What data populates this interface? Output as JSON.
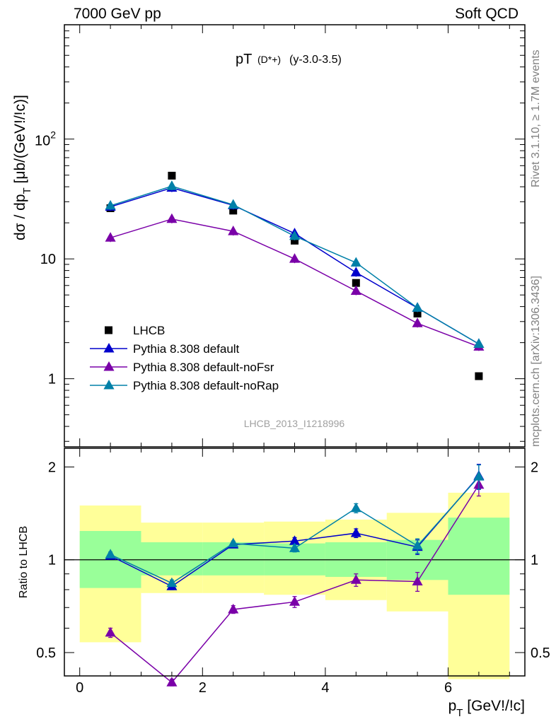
{
  "header": {
    "left": "7000 GeV pp",
    "right": "Soft QCD",
    "side_top": "Rivet 3.1.10, ≥ 1.7M events",
    "side_bottom": "mcplots.cern.ch [arXiv:1306.3436]"
  },
  "chart_data": [
    {
      "type": "scatter",
      "title_main": "pT",
      "title_particle": "(D*+)",
      "title_range": "(y-3.0-3.5)",
      "watermark": "LHCB_2013_I1218996",
      "ylabel": "dσ / dp_T [μb/(GeV!/!c)]",
      "yscale": "log",
      "ylim": [
        0.27,
        900
      ],
      "xlim": [
        -0.25,
        7.25
      ],
      "ytick_labels": [
        "1",
        "10",
        "10^2"
      ],
      "legend_position": "lower-left",
      "legend": [
        "LHCB",
        "Pythia 8.308 default",
        "Pythia 8.308 default-noFsr",
        "Pythia 8.308 default-noRap"
      ],
      "x": [
        0.5,
        1.5,
        2.5,
        3.5,
        4.5,
        5.5,
        6.5
      ],
      "series": [
        {
          "name": "LHCB",
          "color": "#000000",
          "marker": "square",
          "values": [
            26.5,
            49.5,
            25.3,
            14.2,
            6.3,
            3.5,
            1.05
          ]
        },
        {
          "name": "Pythia 8.308 default",
          "color": "#0000cc",
          "marker": "triangle",
          "values": [
            27.2,
            39.2,
            28.0,
            16.3,
            7.7,
            3.9,
            1.95
          ]
        },
        {
          "name": "Pythia 8.308 default-noFsr",
          "color": "#7a00a8",
          "marker": "triangle",
          "values": [
            15.0,
            21.5,
            17.0,
            10.0,
            5.4,
            2.9,
            1.85
          ]
        },
        {
          "name": "Pythia 8.308 default-noRap",
          "color": "#0080a8",
          "marker": "triangle",
          "values": [
            27.8,
            40.5,
            28.3,
            15.5,
            9.3,
            3.9,
            1.95
          ]
        }
      ]
    },
    {
      "type": "scatter",
      "ylabel": "Ratio to LHCB",
      "xlabel": "p_T [GeV!/!c]",
      "ylim": [
        0.42,
        2.3
      ],
      "xlim": [
        -0.25,
        7.25
      ],
      "xtick_labels": [
        "0",
        "2",
        "4",
        "6"
      ],
      "ytick_labels": [
        "0.5",
        "1",
        "2"
      ],
      "x": [
        0.5,
        1.5,
        2.5,
        3.5,
        4.5,
        5.5,
        6.5
      ],
      "bands": [
        {
          "x0": 0,
          "x1": 1,
          "green": [
            0.81,
            1.24
          ],
          "yellow": [
            0.54,
            1.5
          ]
        },
        {
          "x0": 1,
          "x1": 2,
          "green": [
            0.89,
            1.14
          ],
          "yellow": [
            0.78,
            1.32
          ]
        },
        {
          "x0": 2,
          "x1": 3,
          "green": [
            0.89,
            1.14
          ],
          "yellow": [
            0.78,
            1.32
          ]
        },
        {
          "x0": 3,
          "x1": 4,
          "green": [
            0.89,
            1.13
          ],
          "yellow": [
            0.77,
            1.33
          ]
        },
        {
          "x0": 4,
          "x1": 5,
          "green": [
            0.88,
            1.14
          ],
          "yellow": [
            0.74,
            1.35
          ]
        },
        {
          "x0": 5,
          "x1": 6,
          "green": [
            0.86,
            1.16
          ],
          "yellow": [
            0.68,
            1.42
          ]
        },
        {
          "x0": 6,
          "x1": 7,
          "green": [
            0.77,
            1.37
          ],
          "yellow": [
            0.41,
            1.65
          ]
        }
      ],
      "series": [
        {
          "name": "Pythia 8.308 default",
          "color": "#0000cc",
          "values": [
            1.03,
            0.82,
            1.12,
            1.15,
            1.22,
            1.1,
            1.87
          ],
          "errors": [
            0.02,
            0.02,
            0.02,
            0.03,
            0.04,
            0.06,
            0.17
          ]
        },
        {
          "name": "Pythia 8.308 default-noFsr",
          "color": "#7a00a8",
          "values": [
            0.58,
            0.4,
            0.69,
            0.73,
            0.86,
            0.85,
            1.75
          ],
          "errors": [
            0.02,
            0.01,
            0.02,
            0.03,
            0.04,
            0.06,
            0.14
          ]
        },
        {
          "name": "Pythia 8.308 default-noRap",
          "color": "#0080a8",
          "values": [
            1.04,
            0.84,
            1.13,
            1.09,
            1.47,
            1.11,
            1.86
          ],
          "errors": [
            0.02,
            0.02,
            0.02,
            0.03,
            0.05,
            0.06,
            0.17
          ]
        }
      ]
    }
  ]
}
